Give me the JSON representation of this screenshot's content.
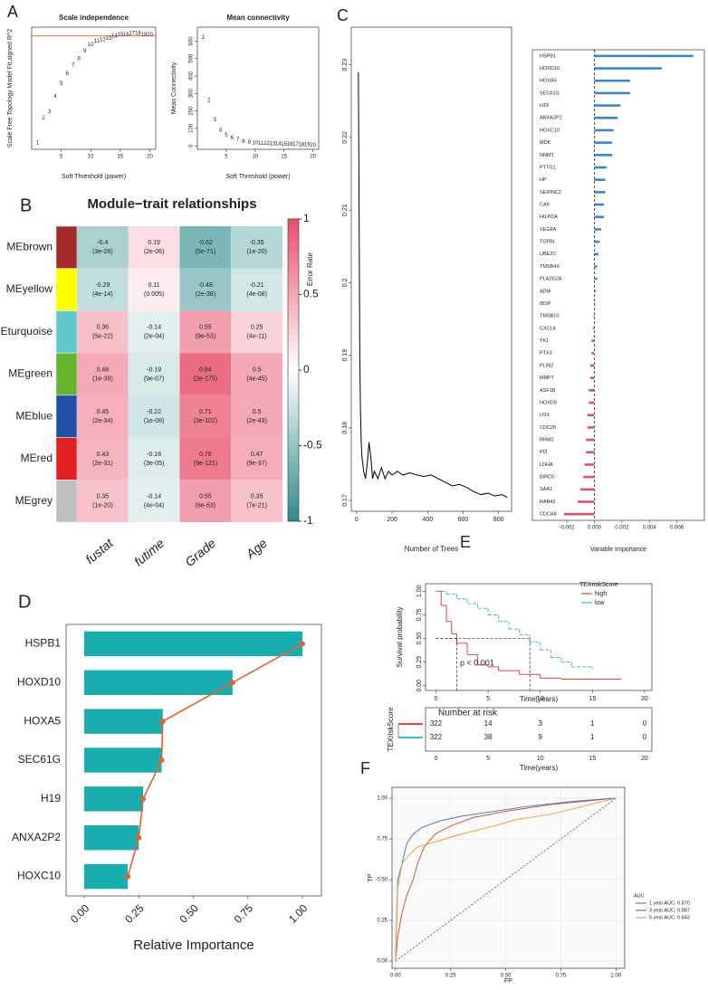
{
  "chart_data": [
    {
      "type": "scatter",
      "label": "A",
      "title": "Scale independence",
      "xlabel": "Soft Threshold (power)",
      "ylabel": "Scale Free Topology Model Fit,signed R^2",
      "x": [
        1,
        2,
        3,
        4,
        5,
        6,
        7,
        8,
        9,
        10,
        11,
        12,
        13,
        14,
        15,
        16,
        17,
        18,
        19,
        20
      ],
      "values": [
        0.05,
        0.25,
        0.3,
        0.42,
        0.52,
        0.6,
        0.67,
        0.72,
        0.78,
        0.83,
        0.86,
        0.87,
        0.88,
        0.9,
        0.91,
        0.91,
        0.92,
        0.92,
        0.91,
        0.91
      ],
      "hline": 0.9,
      "color": "#e8392a",
      "xlim": [
        0,
        21
      ],
      "ylim": [
        0,
        0.97
      ],
      "xticks": [
        5,
        10,
        15,
        20
      ]
    },
    {
      "type": "scatter",
      "title": "Mean connectivity",
      "xlabel": "Soft Threshold (power)",
      "ylabel": "Mean Connectivity",
      "x": [
        1,
        2,
        3,
        4,
        5,
        6,
        7,
        8,
        9,
        10,
        11,
        12,
        13,
        14,
        15,
        16,
        17,
        18,
        19,
        20
      ],
      "values": [
        620,
        260,
        150,
        90,
        60,
        45,
        35,
        25,
        20,
        16,
        14,
        13,
        12,
        11,
        10,
        9,
        8,
        7,
        6,
        5
      ],
      "color": "#e8392a",
      "xlim": [
        0,
        21
      ],
      "ylim": [
        -20,
        680
      ],
      "xticks": [
        5,
        10,
        15,
        20
      ],
      "yticks": [
        0,
        100,
        200,
        300,
        400,
        500,
        600
      ]
    },
    {
      "type": "heatmap",
      "label": "B",
      "title": "Module−trait relationships",
      "rows": [
        "MEbrown",
        "MEyellow",
        "MEturquoise",
        "MEgreen",
        "MEblue",
        "MEred",
        "MEgrey"
      ],
      "row_colors": [
        "#a52a2a",
        "#ffff00",
        "#5fc8c8",
        "#66b32e",
        "#2250a8",
        "#e02020",
        "#bebebe"
      ],
      "columns": [
        "fustat",
        "futime",
        "Grade",
        "Age"
      ],
      "values": [
        [
          -0.4,
          0.19,
          -0.62,
          -0.35
        ],
        [
          -0.29,
          0.11,
          -0.48,
          -0.21
        ],
        [
          0.36,
          -0.14,
          0.55,
          0.25
        ],
        [
          0.48,
          -0.19,
          0.84,
          0.5
        ],
        [
          0.45,
          -0.22,
          0.71,
          0.5
        ],
        [
          0.43,
          -0.16,
          0.76,
          0.47
        ],
        [
          0.35,
          -0.14,
          0.55,
          0.35
        ]
      ],
      "p_labels": [
        [
          "(3e-28)",
          "(2e-06)",
          "(5e-71)",
          "(1e-20)"
        ],
        [
          "(4e-14)",
          "(0.005)",
          "(2e-38)",
          "(4e-08)"
        ],
        [
          "(5e-22)",
          "(2e-04)",
          "(9e-53)",
          "(4e-11)"
        ],
        [
          "(1e-39)",
          "(9e-07)",
          "(2e-175)",
          "(4e-45)"
        ],
        [
          "(2e-34)",
          "(1e-08)",
          "(3e-102)",
          "(2e-43)"
        ],
        [
          "(2e-31)",
          "(3e-05)",
          "(9e-121)",
          "(9e-37)"
        ],
        [
          "(1e-20)",
          "(4e-04)",
          "(6e-53)",
          "(7e-21)"
        ]
      ],
      "colormap": [
        "#2b8a8a",
        "#ffffff",
        "#e8506a"
      ],
      "zlim": [
        -1,
        1
      ],
      "zticks": [
        -1,
        -0.5,
        0,
        0.5,
        1
      ]
    },
    {
      "type": "line",
      "label": "C",
      "xlabel": "Number of Trees",
      "ylabel": "Error Rate",
      "series": [
        {
          "color": "#000000",
          "x": [
            10,
            14,
            18,
            22,
            26,
            30,
            40,
            50,
            60,
            70,
            80,
            90,
            100,
            120,
            140,
            160,
            180,
            200,
            230,
            260,
            300,
            340,
            380,
            420,
            460,
            500,
            540,
            580,
            620,
            660,
            700,
            740,
            780,
            820,
            850
          ],
          "values": [
            0.229,
            0.21,
            0.19,
            0.182,
            0.178,
            0.176,
            0.174,
            0.173,
            0.175,
            0.178,
            0.176,
            0.173,
            0.174,
            0.173,
            0.1745,
            0.173,
            0.174,
            0.1735,
            0.174,
            0.1735,
            0.1738,
            0.1735,
            0.1733,
            0.1735,
            0.173,
            0.1725,
            0.172,
            0.1722,
            0.1718,
            0.1712,
            0.1708,
            0.171,
            0.1706,
            0.1708,
            0.1704
          ]
        }
      ],
      "xlim": [
        -30,
        873
      ],
      "ylim": [
        0.1685,
        0.2352
      ],
      "xticks": [
        0,
        200,
        400,
        600,
        800
      ],
      "yticks": [
        0.17,
        0.18,
        0.19,
        0.2,
        0.21,
        0.22,
        0.23
      ]
    },
    {
      "type": "bar",
      "orientation": "horizontal",
      "xlabel": "Variable Importance",
      "categories": [
        "HSPB1",
        "HOXD10",
        "HOXA5",
        "SEC61G",
        "H19",
        "ANXA2P2",
        "HOXC10",
        "MDK",
        "NNMT",
        "PTTG1",
        "HP",
        "SERINC2",
        "CA9",
        "HILPDA",
        "VEGFA",
        "TGFBI",
        "UBE2C",
        "TMSB4X",
        "PLA2G2A",
        "ADM",
        "IBSP",
        "TMSB10",
        "CXCL8",
        "TK1",
        "PTX3",
        "PLIN2",
        "MMP7",
        "ASF1B",
        "HOXD9",
        "LOX",
        "CDC20",
        "RRM2",
        "PI3",
        "LDHA",
        "BIRC5",
        "SAA1",
        "RAB42",
        "CDCA8"
      ],
      "values": [
        0.0072,
        0.0049,
        0.0026,
        0.0026,
        0.0019,
        0.0017,
        0.0014,
        0.0013,
        0.0013,
        0.0009,
        0.0008,
        0.0008,
        0.0007,
        0.0007,
        0.0005,
        0.0004,
        0.0003,
        0.0002,
        0.0002,
        0.0001,
        5e-05,
        -5e-05,
        -0.0001,
        -0.0002,
        -0.0002,
        -0.0003,
        -0.0003,
        -0.0004,
        -0.0004,
        -0.0005,
        -0.0005,
        -0.0006,
        -0.0006,
        -0.0007,
        -0.0008,
        -0.001,
        -0.0012,
        -0.0022
      ],
      "color": "#3a86c8",
      "negative_color": "#e0506a",
      "xlim": [
        -0.0045,
        0.008
      ],
      "xticks": [
        -0.002,
        {
          "value": 0,
          "label": "0.000"
        },
        0.002,
        0.004,
        0.006
      ]
    },
    {
      "type": "bar",
      "orientation": "horizontal",
      "label": "D",
      "xlabel": "Relative Importance",
      "categories": [
        "HSPB1",
        "HOXD10",
        "HOXA5",
        "SEC61G",
        "H19",
        "ANXA2P2",
        "HOXC10"
      ],
      "values": [
        1.0,
        0.68,
        0.36,
        0.355,
        0.27,
        0.25,
        0.2
      ],
      "color": "#1aadb0",
      "line_color": "#e8602c",
      "xlim": [
        -0.083,
        1.087
      ],
      "xticks": [
        {
          "value": 0,
          "label": "0.00"
        },
        {
          "value": 0.25,
          "label": "0.25"
        },
        {
          "value": 0.5,
          "label": "0.50"
        },
        {
          "value": 0.75,
          "label": "0.75"
        },
        {
          "value": 1,
          "label": "1.00"
        }
      ]
    },
    {
      "type": "line",
      "step": true,
      "label": "E",
      "xlabel": "Time(years)",
      "ylabel": "Survival probability",
      "legend_title": "TEXriskScore",
      "annotation": "p < 0.001",
      "series": [
        {
          "name": "high",
          "color": "#e8432a",
          "x": [
            0,
            0.5,
            1,
            1.5,
            2,
            3,
            4,
            5,
            6,
            8,
            10,
            12,
            17.7
          ],
          "values": [
            1,
            0.85,
            0.68,
            0.55,
            0.45,
            0.33,
            0.22,
            0.2,
            0.16,
            0.12,
            0.08,
            0.07,
            0.06
          ]
        },
        {
          "name": "low",
          "color": "#3bbcd6",
          "x": [
            0,
            1,
            2,
            3,
            4,
            5,
            6,
            7,
            8,
            9,
            10,
            11,
            12,
            13,
            15
          ],
          "values": [
            1,
            0.97,
            0.92,
            0.87,
            0.82,
            0.75,
            0.68,
            0.6,
            0.54,
            0.46,
            0.38,
            0.3,
            0.25,
            0.2,
            0.18
          ]
        }
      ],
      "xlim": [
        -1,
        20.7
      ],
      "ylim": [
        -0.05,
        1.08
      ],
      "xticks": [
        0,
        5,
        10,
        15,
        20
      ],
      "yticks": [
        {
          "value": 0,
          "label": "0.00"
        },
        {
          "value": 0.25,
          "label": "0.25"
        },
        {
          "value": 0.5,
          "label": "0.50"
        },
        {
          "value": 0.75,
          "label": "0.75"
        },
        {
          "value": 1,
          "label": "1.00"
        }
      ],
      "risk_table": {
        "title": "Number at risk",
        "rows": [
          [
            322,
            14,
            3,
            1,
            0
          ],
          [
            322,
            38,
            9,
            1,
            0
          ]
        ]
      }
    },
    {
      "type": "line",
      "label": "F",
      "xlabel": "FP",
      "ylabel": "TP",
      "legend_title": "AUC",
      "grid": true,
      "series": [
        {
          "name": "1 year AUC: 0.870",
          "color": "#d9533f",
          "x": [
            0,
            0.01,
            0.03,
            0.05,
            0.08,
            0.1,
            0.13,
            0.18,
            0.25,
            0.35,
            0.5,
            0.7,
            0.85,
            1
          ],
          "values": [
            0,
            0.15,
            0.3,
            0.4,
            0.5,
            0.6,
            0.7,
            0.78,
            0.83,
            0.88,
            0.92,
            0.96,
            0.98,
            1
          ]
        },
        {
          "name": "3 year AUC: 0.887",
          "color": "#4a7fc1",
          "x": [
            0,
            0.01,
            0.03,
            0.05,
            0.08,
            0.12,
            0.2,
            0.3,
            0.45,
            0.6,
            0.8,
            1
          ],
          "values": [
            0,
            0.5,
            0.6,
            0.72,
            0.78,
            0.82,
            0.86,
            0.89,
            0.92,
            0.95,
            0.98,
            1
          ]
        },
        {
          "name": "5 year AUC: 0.843",
          "color": "#f0a040",
          "x": [
            0,
            0.01,
            0.03,
            0.06,
            0.1,
            0.2,
            0.3,
            0.45,
            0.55,
            0.7,
            0.85,
            1
          ],
          "values": [
            0,
            0.45,
            0.6,
            0.65,
            0.7,
            0.74,
            0.78,
            0.83,
            0.87,
            0.9,
            0.95,
            1
          ]
        }
      ],
      "xlim": [
        -0.016,
        1.04
      ],
      "ylim": [
        -0.044,
        1.067
      ],
      "xticks": [
        {
          "value": 0,
          "label": "0.00"
        },
        {
          "value": 0.25,
          "label": "0.25"
        },
        {
          "value": 0.5,
          "label": "0.50"
        },
        {
          "value": 0.75,
          "label": "0.75"
        },
        {
          "value": 1,
          "label": "1.00"
        }
      ],
      "yticks": [
        {
          "value": 0,
          "label": "0.00"
        },
        {
          "value": 0.25,
          "label": "0.25"
        },
        {
          "value": 0.5,
          "label": "0.50"
        },
        {
          "value": 0.75,
          "label": "0.75"
        },
        {
          "value": 1,
          "label": "1.00"
        }
      ]
    }
  ]
}
